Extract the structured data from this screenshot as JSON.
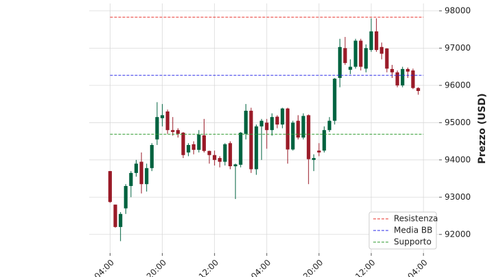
{
  "chart_data": {
    "type": "candlestick",
    "y_label": "Prezzo (USD)",
    "xlim": [
      -4,
      63
    ],
    "ylim": [
      91500,
      98200
    ],
    "xticks": [
      {
        "value": 0,
        "label": "04:00"
      },
      {
        "value": 10,
        "label": "20:00"
      },
      {
        "value": 20,
        "label": "12:00"
      },
      {
        "value": 30,
        "label": "04:00"
      },
      {
        "value": 40,
        "label": "20:00"
      },
      {
        "value": 50,
        "label": "12:00"
      },
      {
        "value": 60,
        "label": "04:00"
      }
    ],
    "yticks": [
      {
        "value": 92000,
        "label": "92000"
      },
      {
        "value": 93000,
        "label": "93000"
      },
      {
        "value": 94000,
        "label": "94000"
      },
      {
        "value": 95000,
        "label": "95000"
      },
      {
        "value": 96000,
        "label": "96000"
      },
      {
        "value": 97000,
        "label": "97000"
      },
      {
        "value": 98000,
        "label": "98000"
      }
    ],
    "grid": true,
    "up_color": "#006340",
    "down_color": "#9a1b28",
    "open": [
      93700,
      92800,
      92200,
      92700,
      93300,
      93650,
      93950,
      93350,
      93780,
      94550,
      95120,
      95300,
      94800,
      94800,
      94730,
      94200,
      94420,
      94270,
      94660,
      94240,
      94130,
      94050,
      93950,
      94450,
      93830,
      93870,
      94700,
      95320,
      93750,
      94900,
      95000,
      94800,
      95160,
      94950,
      95380,
      94280,
      95050,
      94600,
      95200,
      94000,
      94250,
      94250,
      94800,
      95050,
      96200,
      97000,
      96420,
      96500,
      97200,
      96450,
      96950,
      97450,
      97030,
      96990,
      96440,
      96350,
      96000,
      96440,
      96400,
      95930
    ],
    "high": [
      93700,
      92800,
      92600,
      93350,
      93700,
      94000,
      94200,
      93900,
      94450,
      95550,
      95500,
      95350,
      95150,
      94850,
      94750,
      94450,
      94500,
      94800,
      95100,
      94250,
      94250,
      94100,
      94450,
      94500,
      93900,
      94750,
      95500,
      95400,
      94950,
      95100,
      95100,
      95250,
      95200,
      95400,
      95400,
      95050,
      95200,
      95250,
      95220,
      94150,
      94450,
      94900,
      95150,
      96200,
      97250,
      97300,
      96700,
      97250,
      97250,
      97100,
      97800,
      97800,
      97150,
      97000,
      96550,
      96400,
      96500,
      96480,
      96450,
      95950
    ],
    "low": [
      92850,
      92180,
      91820,
      92550,
      93000,
      93550,
      93100,
      93150,
      93700,
      94400,
      94900,
      94700,
      94650,
      94600,
      94050,
      94100,
      94150,
      94200,
      94200,
      93900,
      93850,
      93800,
      93850,
      93750,
      92950,
      93800,
      94550,
      93650,
      93600,
      94000,
      94300,
      94650,
      94850,
      94850,
      93900,
      94250,
      94550,
      94550,
      93350,
      93700,
      94100,
      94200,
      94750,
      94950,
      95950,
      96550,
      96300,
      96450,
      96400,
      96350,
      96900,
      96900,
      96700,
      96350,
      96200,
      95950,
      95950,
      96200,
      95900,
      95750
    ],
    "close": [
      92870,
      92200,
      92550,
      93300,
      93650,
      93900,
      93350,
      93780,
      94400,
      95150,
      95200,
      94800,
      94750,
      94700,
      94130,
      94400,
      94270,
      94680,
      94240,
      94130,
      94000,
      93950,
      94420,
      93830,
      93880,
      94730,
      95320,
      93750,
      94900,
      95050,
      94800,
      95150,
      94950,
      95380,
      94280,
      95000,
      94600,
      95180,
      94020,
      94050,
      94200,
      94800,
      95050,
      96180,
      97030,
      96600,
      96500,
      97200,
      96500,
      97000,
      97450,
      96950,
      96850,
      96450,
      96350,
      96000,
      96440,
      96370,
      95930,
      95850
    ],
    "lines": [
      {
        "name": "Resistenza",
        "value": 97830,
        "color": "#e8302a"
      },
      {
        "name": "Media BB",
        "value": 96270,
        "color": "#2a2ae8"
      },
      {
        "name": "Supporto",
        "value": 94690,
        "color": "#2e9a2e"
      }
    ],
    "legend": "lower right"
  }
}
